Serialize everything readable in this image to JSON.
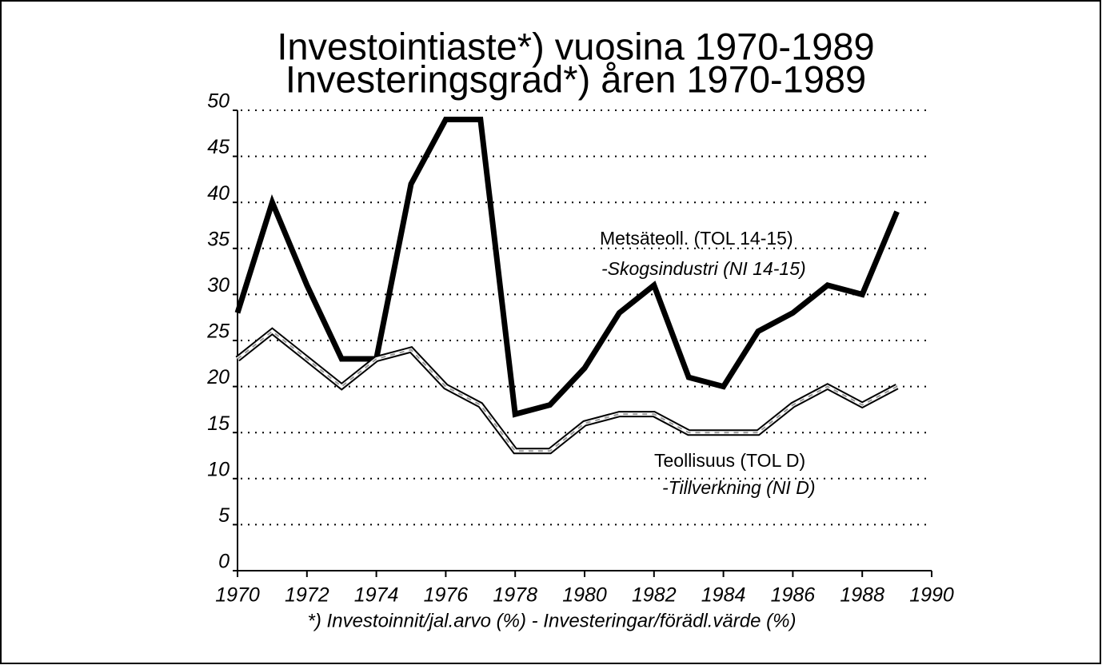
{
  "chart_data": {
    "type": "line",
    "title": [
      "Investointiaste*) vuosina 1970-1989",
      "Investeringsgrad*) åren 1970-1989"
    ],
    "footnote": "*) Investoinnit/jal.arvo (%) - Investeringar/förädl.värde (%)",
    "x": [
      1970,
      1971,
      1972,
      1973,
      1974,
      1975,
      1976,
      1977,
      1978,
      1979,
      1980,
      1981,
      1982,
      1983,
      1984,
      1985,
      1986,
      1987,
      1988,
      1989
    ],
    "series": [
      {
        "name": "Metsäteoll. (TOL 14-15)",
        "subname": "-Skogsindustri (NI 14-15)",
        "color": "#000000",
        "style": "solid",
        "values": [
          28,
          40,
          31,
          23,
          23,
          42,
          49,
          49,
          17,
          18,
          22,
          28,
          31,
          21,
          20,
          26,
          28,
          31,
          30,
          39
        ]
      },
      {
        "name": "Teollisuus (TOL D)",
        "subname": "-Tillverkning (NI D)",
        "color": "#000000",
        "style": "double",
        "values": [
          23,
          26,
          23,
          20,
          23,
          24,
          20,
          18,
          13,
          13,
          16,
          17,
          17,
          15,
          15,
          15,
          18,
          20,
          18,
          20
        ]
      }
    ],
    "xlim": [
      1970,
      1990
    ],
    "xticks": [
      1970,
      1972,
      1974,
      1976,
      1978,
      1980,
      1982,
      1984,
      1986,
      1988,
      1990
    ],
    "ylim": [
      0,
      50
    ],
    "yticks": [
      0,
      5,
      10,
      15,
      20,
      25,
      30,
      35,
      40,
      45,
      50
    ],
    "grid": true
  }
}
